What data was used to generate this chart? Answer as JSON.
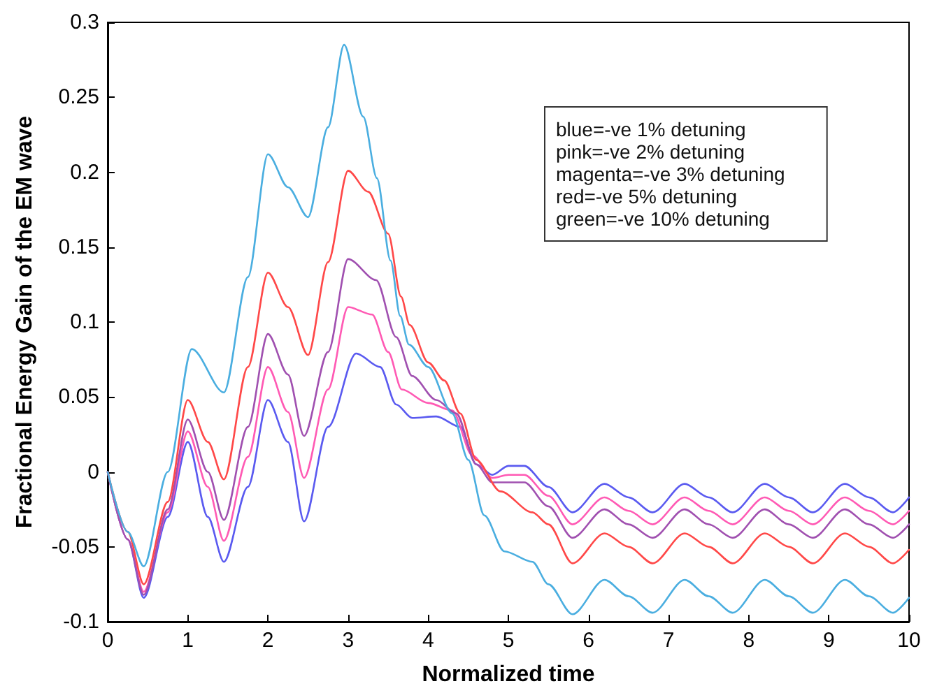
{
  "chart_data": {
    "type": "line",
    "xlabel": "Normalized time",
    "ylabel": "Fractional Energy Gain of the EM wave",
    "annotations": [
      "blue=-ve 1% detuning",
      "pink=-ve 2% detuning",
      "magenta=-ve 3% detuning",
      "red=-ve 5% detuning",
      "green=-ve 10% detuning"
    ],
    "xlim": [
      0,
      10
    ],
    "xticks": [
      0,
      1,
      2,
      3,
      4,
      5,
      6,
      7,
      8,
      9,
      10
    ],
    "ylim": [
      -0.1,
      0.3
    ],
    "yticks": [
      -0.1,
      -0.05,
      0,
      0.05,
      0.1,
      0.15,
      0.2,
      0.25,
      0.3
    ],
    "grid": false,
    "series": [
      {
        "color": "#5a5af0",
        "x": [
          0,
          0.25,
          0.45,
          0.75,
          1,
          1.25,
          1.45,
          1.75,
          2,
          2.25,
          2.45,
          2.75,
          3.1,
          3.4,
          3.6,
          3.8,
          4.1,
          4.4,
          4.6,
          4.8,
          5,
          5.2,
          5.5,
          5.8,
          6.2,
          6.5,
          6.8,
          7.2,
          7.5,
          7.8,
          8.2,
          8.5,
          8.8,
          9.2,
          9.5,
          9.8,
          10
        ],
        "values": [
          0,
          -0.045,
          -0.084,
          -0.03,
          0.02,
          -0.03,
          -0.06,
          -0.01,
          0.048,
          0.02,
          -0.033,
          0.03,
          0.079,
          0.07,
          0.045,
          0.036,
          0.037,
          0.03,
          0.005,
          -0.002,
          0.004,
          0.004,
          -0.01,
          -0.027,
          -0.008,
          -0.017,
          -0.027,
          -0.008,
          -0.017,
          -0.027,
          -0.008,
          -0.017,
          -0.027,
          -0.008,
          -0.017,
          -0.027,
          -0.017
        ]
      },
      {
        "color": "#ff5ab4",
        "x": [
          0,
          0.25,
          0.45,
          0.75,
          1,
          1.25,
          1.45,
          1.75,
          2,
          2.25,
          2.45,
          2.75,
          3,
          3.3,
          3.5,
          3.67,
          4,
          4.3,
          4.55,
          4.8,
          5,
          5.2,
          5.5,
          5.8,
          6.2,
          6.5,
          6.8,
          7.2,
          7.5,
          7.8,
          8.2,
          8.5,
          8.8,
          9.2,
          9.5,
          9.8,
          10
        ],
        "values": [
          0,
          -0.045,
          -0.08,
          -0.027,
          0.027,
          -0.01,
          -0.046,
          0.01,
          0.07,
          0.04,
          -0.004,
          0.055,
          0.11,
          0.105,
          0.08,
          0.055,
          0.046,
          0.041,
          0.011,
          -0.004,
          -0.002,
          -0.002,
          -0.016,
          -0.035,
          -0.017,
          -0.026,
          -0.035,
          -0.017,
          -0.026,
          -0.035,
          -0.017,
          -0.026,
          -0.035,
          -0.017,
          -0.026,
          -0.035,
          -0.026
        ]
      },
      {
        "color": "#a050b0",
        "x": [
          0,
          0.25,
          0.45,
          0.75,
          1,
          1.25,
          1.45,
          1.75,
          2,
          2.25,
          2.45,
          2.75,
          3,
          3.35,
          3.6,
          3.8,
          4.1,
          4.35,
          4.6,
          4.8,
          5.2,
          5.5,
          5.8,
          6.2,
          6.5,
          6.8,
          7.2,
          7.5,
          7.8,
          8.2,
          8.5,
          8.8,
          9.2,
          9.5,
          9.8,
          10
        ],
        "values": [
          0,
          -0.045,
          -0.082,
          -0.025,
          0.035,
          0,
          -0.032,
          0.03,
          0.092,
          0.065,
          0.024,
          0.08,
          0.142,
          0.128,
          0.09,
          0.064,
          0.048,
          0.039,
          0.005,
          -0.007,
          -0.007,
          -0.023,
          -0.044,
          -0.025,
          -0.035,
          -0.044,
          -0.025,
          -0.035,
          -0.044,
          -0.025,
          -0.035,
          -0.044,
          -0.025,
          -0.035,
          -0.044,
          -0.035
        ]
      },
      {
        "color": "#ff4848",
        "x": [
          0,
          0.25,
          0.45,
          0.75,
          1,
          1.25,
          1.45,
          1.75,
          2,
          2.25,
          2.5,
          2.75,
          3,
          3.25,
          3.5,
          3.66,
          3.77,
          4,
          4.2,
          4.4,
          4.6,
          4.9,
          5.3,
          5.5,
          5.8,
          6.2,
          6.5,
          6.8,
          7.2,
          7.5,
          7.8,
          8.2,
          8.5,
          8.8,
          9.2,
          9.5,
          9.8,
          10
        ],
        "values": [
          0,
          -0.04,
          -0.075,
          -0.02,
          0.048,
          0.02,
          -0.005,
          0.07,
          0.133,
          0.11,
          0.078,
          0.14,
          0.201,
          0.187,
          0.159,
          0.117,
          0.098,
          0.073,
          0.061,
          0.039,
          0.008,
          -0.013,
          -0.027,
          -0.035,
          -0.061,
          -0.041,
          -0.05,
          -0.061,
          -0.041,
          -0.05,
          -0.061,
          -0.041,
          -0.05,
          -0.061,
          -0.041,
          -0.05,
          -0.061,
          -0.052
        ]
      },
      {
        "color": "#4aaee0",
        "x": [
          0,
          0.25,
          0.45,
          0.75,
          1.05,
          1.45,
          1.75,
          2,
          2.25,
          2.5,
          2.75,
          2.95,
          3.19,
          3.36,
          3.53,
          3.65,
          3.76,
          4,
          4.3,
          4.5,
          4.7,
          4.95,
          5.3,
          5.5,
          5.8,
          6.2,
          6.5,
          6.8,
          7.2,
          7.5,
          7.8,
          8.2,
          8.5,
          8.8,
          9.2,
          9.5,
          9.8,
          10
        ],
        "values": [
          0,
          -0.04,
          -0.063,
          0,
          0.082,
          0.053,
          0.13,
          0.212,
          0.19,
          0.17,
          0.23,
          0.285,
          0.237,
          0.196,
          0.141,
          0.104,
          0.085,
          0.07,
          0.039,
          0.008,
          -0.029,
          -0.053,
          -0.06,
          -0.075,
          -0.095,
          -0.072,
          -0.083,
          -0.094,
          -0.072,
          -0.083,
          -0.094,
          -0.072,
          -0.083,
          -0.094,
          -0.072,
          -0.083,
          -0.094,
          -0.084
        ]
      }
    ]
  }
}
